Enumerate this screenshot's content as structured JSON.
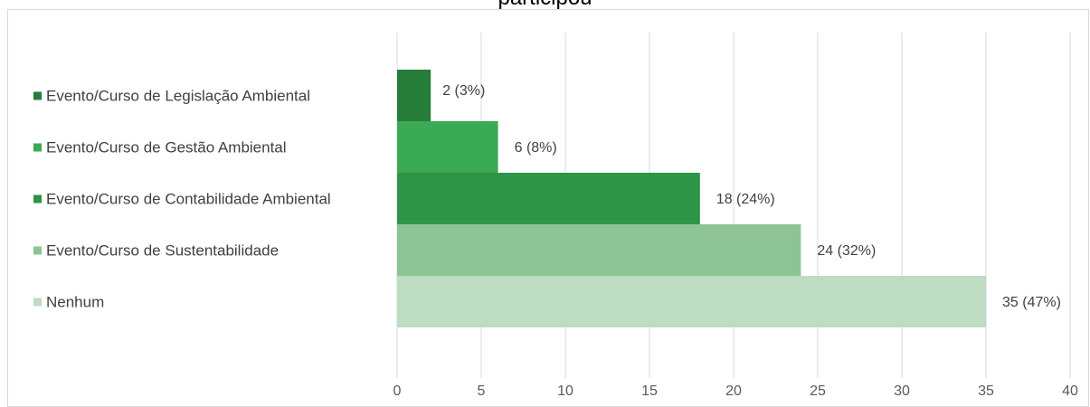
{
  "chart_data": {
    "type": "bar",
    "orientation": "horizontal",
    "title": "participou",
    "categories": [
      "Evento/Curso de Legislação Ambiental",
      "Evento/Curso de Gestão Ambiental",
      "Evento/Curso de Contabilidade Ambiental",
      "Evento/Curso de Sustentabilidade",
      "Nenhum"
    ],
    "values": [
      2,
      6,
      18,
      24,
      35
    ],
    "data_labels": [
      "2 (3%)",
      "6  (8%)",
      "18  (24%)",
      "24  (32%)",
      "35  (47%)"
    ],
    "colors": [
      "#267d3a",
      "#3aaa55",
      "#2e9447",
      "#8ec495",
      "#bddcc2"
    ],
    "xlim": [
      0,
      40
    ],
    "xticks": [
      "0",
      "5",
      "10",
      "15",
      "20",
      "25",
      "30",
      "35",
      "40"
    ],
    "grid": true,
    "legend": "left"
  }
}
